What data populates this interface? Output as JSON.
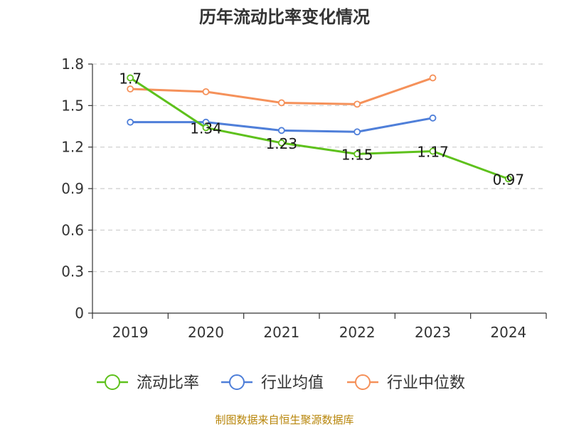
{
  "chart_data": {
    "type": "line",
    "title": "历年流动比率变化情况",
    "categories": [
      "2019",
      "2020",
      "2021",
      "2022",
      "2023",
      "2024"
    ],
    "yticks": [
      "0",
      "0.3",
      "0.6",
      "0.9",
      "1.2",
      "1.5",
      "1.8"
    ],
    "ylim": [
      0,
      1.8
    ],
    "grid": true,
    "legend_position": "bottom",
    "series": [
      {
        "name": "流动比率",
        "color": "#5ec11c",
        "values": [
          1.7,
          1.34,
          1.23,
          1.15,
          1.17,
          0.97
        ],
        "labels": [
          "1.7",
          "1.34",
          "1.23",
          "1.15",
          "1.17",
          "0.97"
        ]
      },
      {
        "name": "行业均值",
        "color": "#4f7fd9",
        "values": [
          1.38,
          1.38,
          1.32,
          1.31,
          1.41,
          null
        ]
      },
      {
        "name": "行业中位数",
        "color": "#f5915a",
        "values": [
          1.62,
          1.6,
          1.52,
          1.51,
          1.7,
          null
        ]
      }
    ]
  },
  "source_note": "制图数据来自恒生聚源数据库"
}
